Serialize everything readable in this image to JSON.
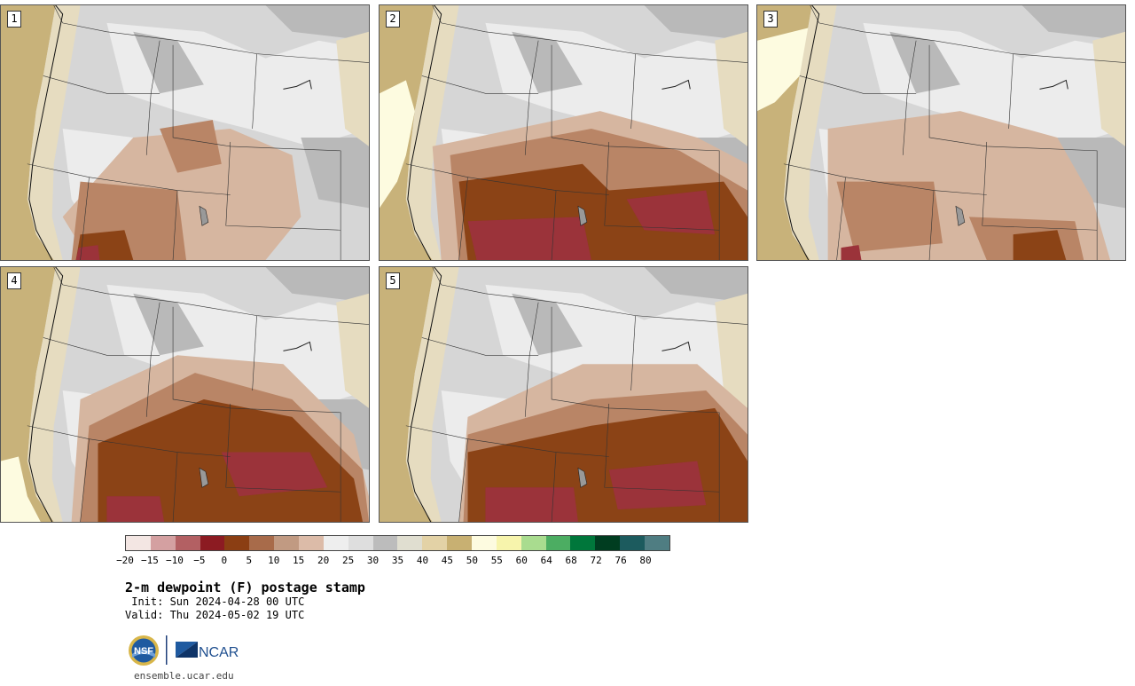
{
  "title": "2-m dewpoint (F) postage stamp",
  "init": " Init: Sun 2024-04-28 00 UTC",
  "valid": "Valid: Thu 2024-05-02 19 UTC",
  "url": "ensemble.ucar.edu",
  "logos": {
    "nsf": "NSF",
    "ncar": "NCAR"
  },
  "panels": [
    "1",
    "2",
    "3",
    "4",
    "5"
  ],
  "colorbar": {
    "colors": [
      "#f3e6e3",
      "#d4a0a1",
      "#b36063",
      "#8c1b22",
      "#8b3e13",
      "#a86b4a",
      "#c19a82",
      "#dcbba8",
      "#eeeeee",
      "#dedede",
      "#bcbcbc",
      "#e0ded0",
      "#e3d2a6",
      "#c8b072",
      "#fdfbe0",
      "#f7f4ac",
      "#a9dc8f",
      "#4cad62",
      "#00773b",
      "#003d20",
      "#1c5b5e",
      "#4f7d82"
    ],
    "ticks": [
      "−20",
      "−15",
      "−10",
      "−5",
      "0",
      "5",
      "10",
      "15",
      "20",
      "25",
      "30",
      "35",
      "40",
      "45",
      "50",
      "55",
      "60",
      "64",
      "68",
      "72",
      "76",
      "80"
    ]
  },
  "map_colors": {
    "gray_light": "#ececec",
    "gray_mid": "#d6d6d6",
    "gray_dark": "#b9b9b9",
    "tan_light": "#e6dcc0",
    "tan": "#c8b27a",
    "yellow": "#fdfbe0",
    "brown_light": "#d6b6a0",
    "brown_mid": "#b98566",
    "brown": "#8b4316",
    "crimson": "#8c1b22",
    "pink": "#c97a82"
  }
}
